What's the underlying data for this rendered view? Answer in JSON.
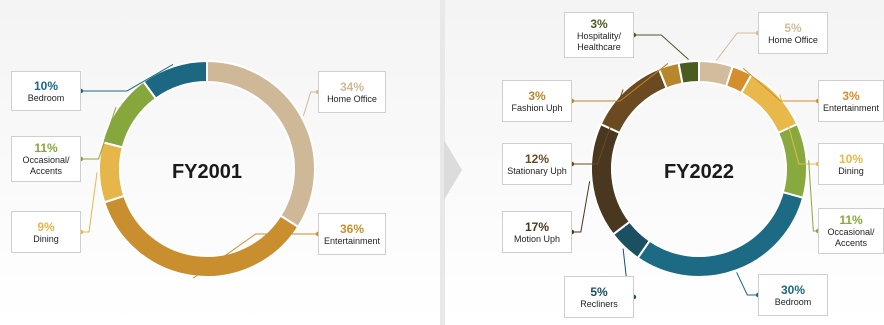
{
  "chart_data": [
    {
      "type": "pie",
      "title": "FY2001",
      "categories": [
        "Home Office",
        "Entertainment",
        "Dining",
        "Occasional/ Accents",
        "Bedroom"
      ],
      "values": [
        34,
        36,
        9,
        11,
        10
      ],
      "value_labels": [
        "34%",
        "36%",
        "9%",
        "11%",
        "10%"
      ],
      "colors": [
        "#cfb898",
        "#c98f2e",
        "#e7b64a",
        "#86a73c",
        "#1c6882"
      ]
    },
    {
      "type": "pie",
      "title": "FY2022",
      "categories": [
        "Home Office",
        "Entertainment",
        "Dining",
        "Occasional/ Accents",
        "Bedroom",
        "Recliners",
        "Motion Uph",
        "Stationary Uph",
        "Fashion Uph",
        "Hospitality/ Healthcare"
      ],
      "values": [
        5,
        3,
        10,
        11,
        30,
        5,
        17,
        12,
        3,
        3
      ],
      "value_labels": [
        "5%",
        "3%",
        "10%",
        "11%",
        "30%",
        "5%",
        "17%",
        "12%",
        "3%",
        "3%"
      ],
      "colors": [
        "#d1bc9d",
        "#d68d2c",
        "#e9b84a",
        "#88a93e",
        "#1d6a84",
        "#1b4f62",
        "#4a3720",
        "#6b4a22",
        "#b8872c",
        "#4a5c22"
      ]
    }
  ]
}
